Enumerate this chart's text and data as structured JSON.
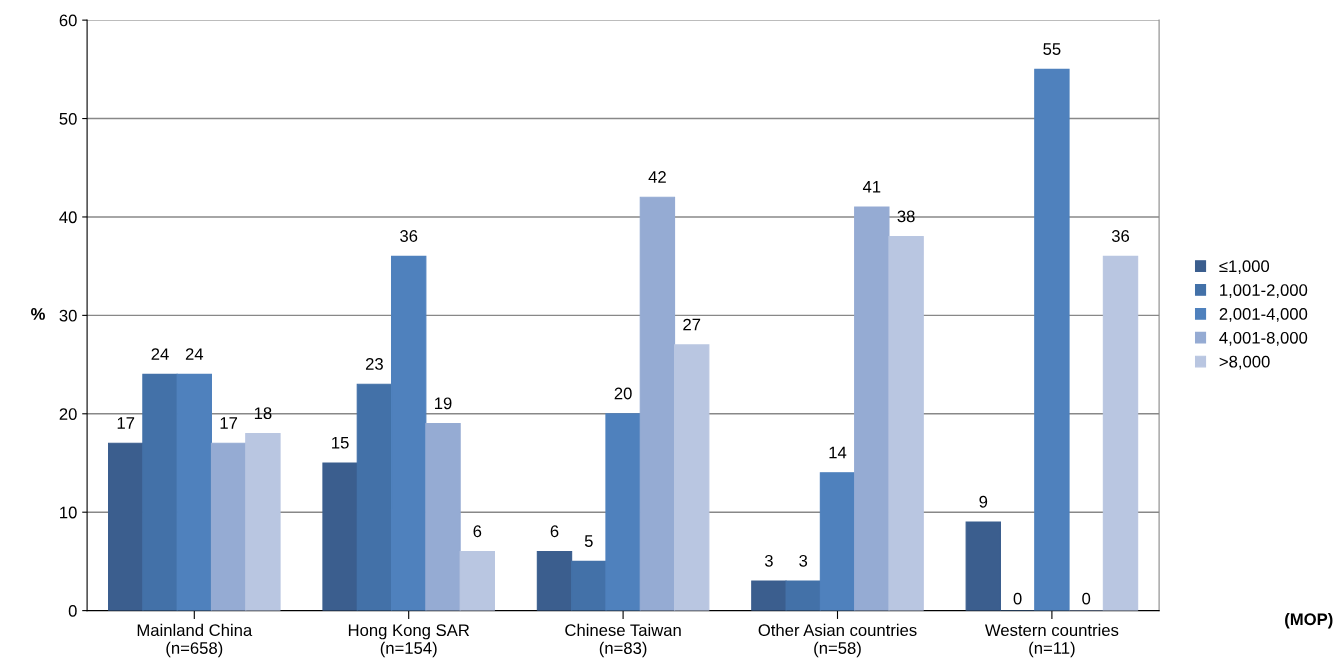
{
  "chart_data": {
    "type": "bar",
    "ylabel": "%",
    "categories": [
      "Mainland China\n(n=658)",
      "Hong Kong SAR\n(n=154)",
      "Chinese Taiwan\n(n=83)",
      "Other Asian countries\n(n=58)",
      "Western countries\n(n=11)"
    ],
    "series": [
      {
        "name": "≤1,000",
        "color": "#3b5e8e",
        "values": [
          17,
          15,
          6,
          3,
          9
        ]
      },
      {
        "name": "1,001-2,000",
        "color": "#4371a8",
        "values": [
          24,
          23,
          5,
          3,
          0
        ]
      },
      {
        "name": "2,001-4,000",
        "color": "#4f81bd",
        "values": [
          24,
          36,
          20,
          14,
          55
        ]
      },
      {
        "name": "4,001-8,000",
        "color": "#95abd3",
        "values": [
          17,
          19,
          42,
          41,
          0
        ]
      },
      {
        "name": ">8,000",
        "color": "#b9c6e1",
        "values": [
          18,
          6,
          27,
          38,
          36
        ]
      }
    ],
    "ylim": [
      0,
      60
    ],
    "yticks": [
      0,
      10,
      20,
      30,
      40,
      50,
      60
    ],
    "grid": "y",
    "legend": "right",
    "data_labels": true,
    "annotations": [
      "(MOP)"
    ]
  }
}
